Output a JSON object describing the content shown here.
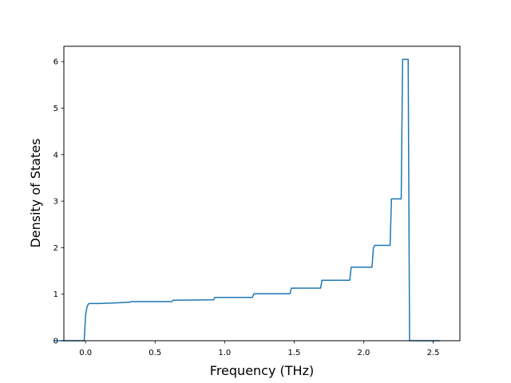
{
  "chart_data": {
    "type": "line",
    "title": "",
    "xlabel": "Frequency (THz)",
    "ylabel": "Density of States",
    "xlim": [
      -0.156,
      2.692
    ],
    "ylim": [
      0,
      6.33
    ],
    "grid": false,
    "xticks": [
      0.0,
      0.5,
      1.0,
      1.5,
      2.0,
      2.5
    ],
    "xtick_labels": [
      "0.0",
      "0.5",
      "1.0",
      "1.5",
      "2.0",
      "2.5"
    ],
    "yticks": [
      0,
      1,
      2,
      3,
      4,
      5,
      6
    ],
    "ytick_labels": [
      "0",
      "1",
      "2",
      "3",
      "4",
      "5",
      "6"
    ],
    "series": [
      {
        "color": "#1f77b4",
        "x": [
          -0.23,
          -0.01,
          0.0,
          0.01,
          0.02,
          0.03,
          0.1,
          0.2,
          0.32,
          0.33,
          0.62,
          0.63,
          0.92,
          0.93,
          1.2,
          1.21,
          1.47,
          1.48,
          1.69,
          1.7,
          1.9,
          1.91,
          2.06,
          2.07,
          2.08,
          2.19,
          2.2,
          2.27,
          2.28,
          2.32,
          2.33,
          2.55
        ],
        "y": [
          0.0,
          0.0,
          0.55,
          0.72,
          0.79,
          0.8,
          0.8,
          0.81,
          0.83,
          0.84,
          0.84,
          0.87,
          0.88,
          0.93,
          0.93,
          1.01,
          1.01,
          1.13,
          1.13,
          1.3,
          1.3,
          1.58,
          1.58,
          2.0,
          2.05,
          2.05,
          3.05,
          3.05,
          6.05,
          6.05,
          0.0,
          0.0
        ]
      }
    ]
  }
}
